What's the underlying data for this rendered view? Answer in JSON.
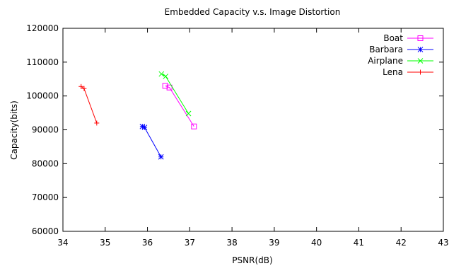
{
  "chart_data": {
    "type": "line",
    "title": "Embedded Capacity v.s. Image Distortion",
    "xlabel": "PSNR(dB)",
    "ylabel": "Capacity(bits)",
    "xlim": [
      34,
      43
    ],
    "ylim": [
      60000,
      120000
    ],
    "xticks": [
      34,
      35,
      36,
      37,
      38,
      39,
      40,
      41,
      42,
      43
    ],
    "yticks": [
      60000,
      70000,
      80000,
      90000,
      100000,
      110000,
      120000
    ],
    "grid": false,
    "legend_position": "top-right",
    "series": [
      {
        "name": "Boat",
        "color": "#ff00ff",
        "marker": "square",
        "x": [
          36.42,
          36.52,
          37.1
        ],
        "y": [
          103000,
          102500,
          91000
        ]
      },
      {
        "name": "Barbara",
        "color": "#0000ff",
        "marker": "asterisk",
        "x": [
          35.88,
          35.93,
          36.32
        ],
        "y": [
          91000,
          90700,
          82000
        ]
      },
      {
        "name": "Airplane",
        "color": "#00ff00",
        "marker": "x",
        "x": [
          36.33,
          36.43,
          36.97
        ],
        "y": [
          106500,
          105800,
          94800
        ]
      },
      {
        "name": "Lena",
        "color": "#ff0000",
        "marker": "plus",
        "x": [
          34.43,
          34.5,
          34.8
        ],
        "y": [
          102800,
          102200,
          92000
        ]
      }
    ]
  }
}
